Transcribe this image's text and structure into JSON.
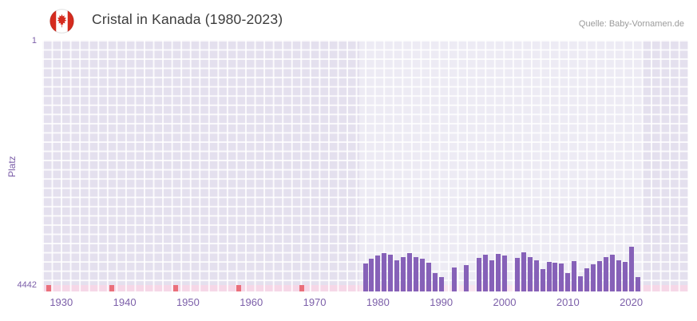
{
  "header": {
    "title": "Cristal in Kanada (1980-2023)",
    "source": "Quelle: Baby-Vornamen.de",
    "flag_icon": "canada-flag-icon"
  },
  "chart_data": {
    "type": "bar",
    "title": "Cristal in Kanada (1980-2023)",
    "xlabel": "",
    "ylabel": "Platz",
    "y_axis": {
      "top_label": "1",
      "bottom_label": "4442",
      "min": 1,
      "max": 4442,
      "inverted": true
    },
    "x_axis": {
      "min": 1927,
      "max": 2029,
      "ticks": [
        1930,
        1940,
        1950,
        1960,
        1970,
        1980,
        1990,
        2000,
        2010,
        2020
      ]
    },
    "highlight_band": {
      "from": 1977,
      "to": 2022
    },
    "red_marker_years": [
      1928,
      1938,
      1948,
      1958,
      1968
    ],
    "series": [
      {
        "name": "Platz",
        "points": [
          {
            "year": 1978,
            "rank": 4050
          },
          {
            "year": 1979,
            "rank": 3960
          },
          {
            "year": 1980,
            "rank": 3900
          },
          {
            "year": 1981,
            "rank": 3860
          },
          {
            "year": 1982,
            "rank": 3890
          },
          {
            "year": 1983,
            "rank": 4000
          },
          {
            "year": 1984,
            "rank": 3940
          },
          {
            "year": 1985,
            "rank": 3860
          },
          {
            "year": 1986,
            "rank": 3930
          },
          {
            "year": 1987,
            "rank": 3970
          },
          {
            "year": 1988,
            "rank": 4040
          },
          {
            "year": 1989,
            "rank": 4230
          },
          {
            "year": 1990,
            "rank": 4300
          },
          {
            "year": 1992,
            "rank": 4120
          },
          {
            "year": 1994,
            "rank": 4080
          },
          {
            "year": 1996,
            "rank": 3950
          },
          {
            "year": 1997,
            "rank": 3890
          },
          {
            "year": 1998,
            "rank": 4000
          },
          {
            "year": 1999,
            "rank": 3880
          },
          {
            "year": 2000,
            "rank": 3910
          },
          {
            "year": 2002,
            "rank": 3950
          },
          {
            "year": 2003,
            "rank": 3850
          },
          {
            "year": 2004,
            "rank": 3940
          },
          {
            "year": 2005,
            "rank": 3990
          },
          {
            "year": 2006,
            "rank": 4150
          },
          {
            "year": 2007,
            "rank": 4020
          },
          {
            "year": 2008,
            "rank": 4030
          },
          {
            "year": 2009,
            "rank": 4050
          },
          {
            "year": 2010,
            "rank": 4220
          },
          {
            "year": 2011,
            "rank": 4010
          },
          {
            "year": 2012,
            "rank": 4280
          },
          {
            "year": 2013,
            "rank": 4140
          },
          {
            "year": 2014,
            "rank": 4060
          },
          {
            "year": 2015,
            "rank": 4010
          },
          {
            "year": 2016,
            "rank": 3940
          },
          {
            "year": 2017,
            "rank": 3890
          },
          {
            "year": 2018,
            "rank": 3990
          },
          {
            "year": 2019,
            "rank": 4020
          },
          {
            "year": 2020,
            "rank": 3750
          },
          {
            "year": 2021,
            "rank": 4300
          }
        ]
      }
    ],
    "colors": {
      "bar": "#8661b8",
      "plot_background": "#e4e0ee",
      "grid": "#ffffff",
      "axis_text": "#7c5fa9",
      "strip_pink": "#f6d7e7",
      "strip_red": "#ea6f7b",
      "flag_red": "#d52b1e"
    }
  }
}
